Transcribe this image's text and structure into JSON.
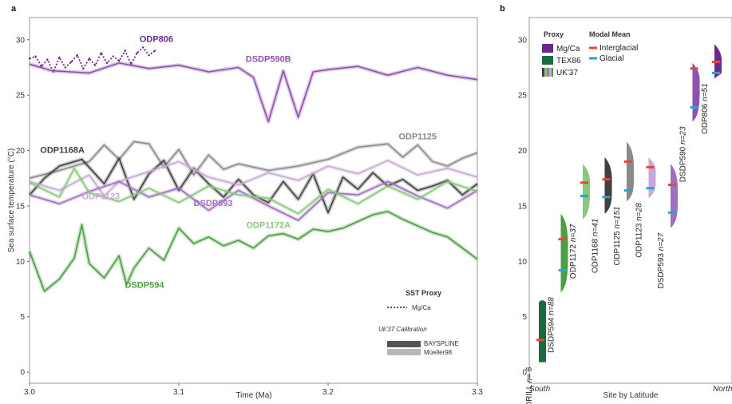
{
  "chart_data": [
    {
      "panel_label": "a",
      "type": "line",
      "xlabel": "Time (Ma)",
      "ylabel": "Sea surface temperature (°C)",
      "xlim": [
        3.0,
        3.3
      ],
      "ylim": [
        -1,
        32
      ],
      "xticks": [
        "3.0",
        "3.1",
        "3.2",
        "3.3"
      ],
      "yticks": [
        "0",
        "5",
        "10",
        "15",
        "20",
        "25",
        "30"
      ],
      "grid": false,
      "legend_title": "SST Proxy",
      "legend_mgca": "Mg/Ca",
      "calibration_title": "Uk'37 Calibration",
      "calibration_items": [
        "BAYSPLINE",
        "Müeller98"
      ],
      "series": [
        {
          "name": "ODP806",
          "color": "#6a2a8a",
          "proxy": "Mg/Ca",
          "x": [
            3.0,
            3.004,
            3.008,
            3.012,
            3.016,
            3.02,
            3.024,
            3.028,
            3.032,
            3.036,
            3.04,
            3.044,
            3.048,
            3.052,
            3.056,
            3.06,
            3.064,
            3.068,
            3.072,
            3.076,
            3.08,
            3.084
          ],
          "y": [
            28.3,
            28.5,
            27.6,
            28.2,
            27.1,
            28.4,
            27.5,
            28.0,
            28.6,
            27.4,
            28.3,
            27.7,
            28.8,
            27.9,
            28.5,
            28.1,
            29.0,
            27.8,
            28.8,
            29.3,
            28.6,
            29.0
          ]
        },
        {
          "name": "DSDP590B",
          "color": "#9050b0",
          "x": [
            3.0,
            3.015,
            3.04,
            3.06,
            3.08,
            3.1,
            3.12,
            3.14,
            3.15,
            3.16,
            3.17,
            3.18,
            3.19,
            3.2,
            3.22,
            3.24,
            3.26,
            3.28,
            3.3
          ],
          "y": [
            27.8,
            27.2,
            27.0,
            27.9,
            27.4,
            27.7,
            27.1,
            27.5,
            26.6,
            22.6,
            27.2,
            23.0,
            27.1,
            27.3,
            27.6,
            26.8,
            27.5,
            26.8,
            26.4
          ]
        },
        {
          "name": "ODP1125",
          "color": "#8a8a8a",
          "x": [
            3.0,
            3.02,
            3.04,
            3.05,
            3.06,
            3.07,
            3.08,
            3.09,
            3.1,
            3.11,
            3.12,
            3.13,
            3.14,
            3.16,
            3.18,
            3.2,
            3.22,
            3.24,
            3.25,
            3.26,
            3.27,
            3.28,
            3.29,
            3.3
          ],
          "y": [
            17.5,
            18.2,
            19.0,
            20.5,
            19.2,
            20.8,
            20.6,
            18.5,
            20.1,
            17.8,
            19.6,
            18.3,
            18.8,
            18.2,
            18.6,
            19.2,
            20.3,
            20.6,
            19.4,
            20.5,
            19.0,
            18.6,
            19.3,
            19.8
          ]
        },
        {
          "name": "ODP1168A",
          "color": "#404040",
          "x": [
            3.0,
            3.01,
            3.02,
            3.035,
            3.05,
            3.06,
            3.07,
            3.08,
            3.09,
            3.1,
            3.11,
            3.12,
            3.13,
            3.14,
            3.15,
            3.16,
            3.17,
            3.18,
            3.19,
            3.2,
            3.21,
            3.22,
            3.23,
            3.24,
            3.25,
            3.26,
            3.27,
            3.28,
            3.29,
            3.3
          ],
          "y": [
            16.0,
            17.5,
            18.6,
            19.2,
            17.0,
            19.3,
            15.6,
            17.9,
            19.1,
            16.4,
            18.4,
            17.0,
            15.8,
            17.4,
            16.0,
            15.3,
            17.2,
            15.6,
            17.9,
            14.4,
            17.6,
            16.5,
            18.0,
            16.8,
            17.4,
            16.4,
            16.8,
            17.3,
            16.0,
            17.0
          ]
        },
        {
          "name": "ODP1123",
          "color": "#c8a8d8",
          "x": [
            3.0,
            3.02,
            3.04,
            3.05,
            3.06,
            3.08,
            3.1,
            3.12,
            3.14,
            3.16,
            3.18,
            3.2,
            3.22,
            3.24,
            3.26,
            3.28,
            3.3
          ],
          "y": [
            17.2,
            16.4,
            17.8,
            15.9,
            17.2,
            18.1,
            19.0,
            17.6,
            16.9,
            18.0,
            17.3,
            18.6,
            17.9,
            19.1,
            17.8,
            18.4,
            17.6
          ]
        },
        {
          "name": "DSDP593",
          "color": "#a070c0",
          "x": [
            3.0,
            3.02,
            3.04,
            3.06,
            3.08,
            3.1,
            3.12,
            3.14,
            3.16,
            3.18,
            3.2,
            3.22,
            3.24,
            3.26,
            3.28,
            3.3
          ],
          "y": [
            16.0,
            15.2,
            16.3,
            17.2,
            15.8,
            16.6,
            14.6,
            16.4,
            15.0,
            13.7,
            16.2,
            16.0,
            17.2,
            15.9,
            14.8,
            16.4
          ]
        },
        {
          "name": "ODP1172A",
          "color": "#88c878",
          "x": [
            3.0,
            3.02,
            3.03,
            3.04,
            3.06,
            3.08,
            3.1,
            3.12,
            3.14,
            3.16,
            3.18,
            3.2,
            3.22,
            3.24,
            3.26,
            3.28,
            3.3
          ],
          "y": [
            17.1,
            15.8,
            18.4,
            16.2,
            15.4,
            16.6,
            15.3,
            16.8,
            16.0,
            15.7,
            14.3,
            16.5,
            15.2,
            16.8,
            15.6,
            17.2,
            16.3
          ]
        },
        {
          "name": "DSDP594",
          "color": "#4aa040",
          "x": [
            3.0,
            3.01,
            3.02,
            3.03,
            3.035,
            3.04,
            3.05,
            3.06,
            3.065,
            3.07,
            3.08,
            3.09,
            3.1,
            3.11,
            3.12,
            3.13,
            3.14,
            3.15,
            3.16,
            3.17,
            3.18,
            3.19,
            3.2,
            3.21,
            3.22,
            3.23,
            3.24,
            3.25,
            3.26,
            3.27,
            3.28,
            3.29,
            3.3
          ],
          "y": [
            10.9,
            7.3,
            8.4,
            10.3,
            13.3,
            9.8,
            8.5,
            10.5,
            7.9,
            9.4,
            11.2,
            10.1,
            13.0,
            11.6,
            12.2,
            11.4,
            11.9,
            11.2,
            12.3,
            12.5,
            12.0,
            12.9,
            12.7,
            13.0,
            13.6,
            14.2,
            14.5,
            13.8,
            13.2,
            12.6,
            12.2,
            11.2,
            10.2
          ]
        }
      ]
    },
    {
      "panel_label": "b",
      "type": "violin",
      "xlabel": "Site by Latitude",
      "xlabel_left": "South",
      "xlabel_right": "North",
      "ylim": [
        -1,
        32
      ],
      "yticks": [
        "0",
        "5",
        "10",
        "15",
        "20",
        "25",
        "30"
      ],
      "legend_proxy_title": "Proxy",
      "legend_proxy_items": [
        "Mg/Ca",
        "TEX86",
        "UK'37"
      ],
      "legend_mean_title": "Modal Mean",
      "legend_mean_items": [
        "Interglacial",
        "Glacial"
      ],
      "interglacial_color": "#e8443a",
      "glacial_color": "#2aa0d8",
      "sites": [
        {
          "name": "ANDRILL",
          "n": "n= 6",
          "min": 0.9,
          "max": 6.3,
          "interglacial": 2.9,
          "glacial": null,
          "proxy": "TEX86",
          "color": "#1e6a40"
        },
        {
          "name": "DSDP594",
          "n": "n=88",
          "min": 7.2,
          "max": 14.3,
          "interglacial": 12.0,
          "glacial": 9.2,
          "proxy": "UK'37",
          "color": "#4aa040"
        },
        {
          "name": "ODP1172",
          "n": "n=37",
          "min": 13.8,
          "max": 18.8,
          "interglacial": 17.1,
          "glacial": 15.9,
          "proxy": "UK'37",
          "color": "#88c878"
        },
        {
          "name": "ODP1168",
          "n": "n=41",
          "min": 14.3,
          "max": 19.4,
          "interglacial": 17.4,
          "glacial": 15.8,
          "proxy": "UK'37",
          "color": "#404040"
        },
        {
          "name": "ODP1125",
          "n": "n=151",
          "min": 15.4,
          "max": 20.8,
          "interglacial": 19.0,
          "glacial": 16.4,
          "proxy": "UK'37",
          "color": "#8a8a8a"
        },
        {
          "name": "ODP1123",
          "n": "n=28",
          "min": 15.7,
          "max": 19.4,
          "interglacial": 18.5,
          "glacial": 16.6,
          "proxy": "UK'37",
          "color": "#c8a8d8"
        },
        {
          "name": "DSDP593",
          "n": "n=27",
          "min": 13.0,
          "max": 18.8,
          "interglacial": 16.9,
          "glacial": 14.4,
          "proxy": "UK'37",
          "color": "#a070c0"
        },
        {
          "name": "DSDP590",
          "n": "n=23",
          "min": 22.6,
          "max": 27.9,
          "interglacial": 27.4,
          "glacial": 23.9,
          "proxy": "UK'37",
          "color": "#9050b0"
        },
        {
          "name": "ODP806",
          "n": "n=51",
          "min": 26.5,
          "max": 29.6,
          "interglacial": 28.0,
          "glacial": 27.0,
          "proxy": "Mg/Ca",
          "color": "#6a2a8a"
        }
      ]
    }
  ]
}
